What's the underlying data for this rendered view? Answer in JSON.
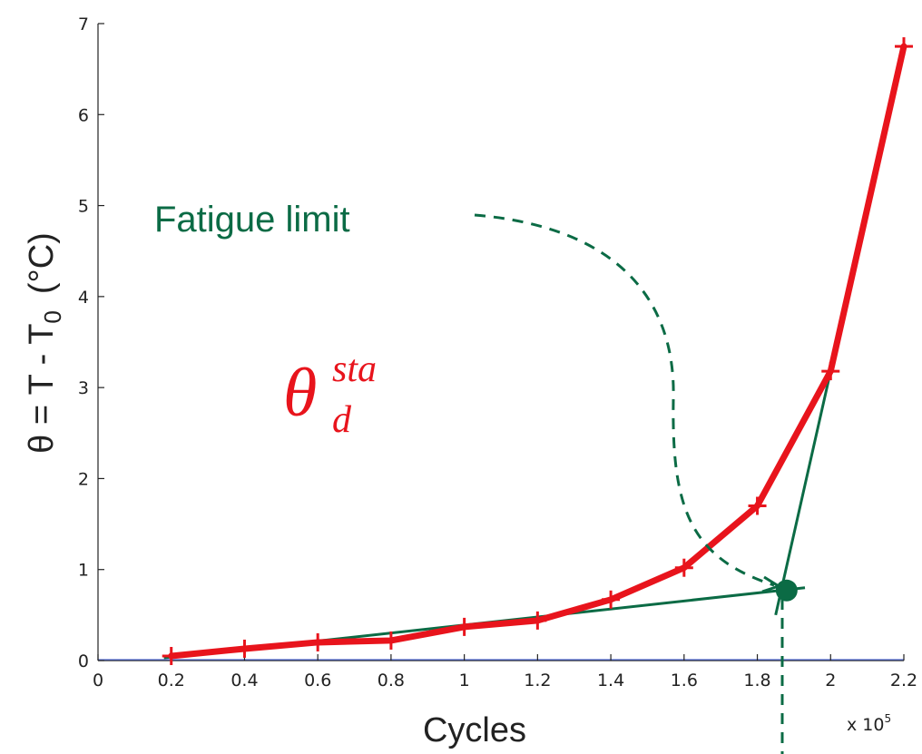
{
  "chart_data": {
    "type": "line",
    "xlabel": "Cycles",
    "ylabel_parts": {
      "pre": "θ = T - T",
      "sub": "0",
      "unit": "(°C)"
    },
    "x_multiplier": {
      "text": "x 10",
      "sup": "5"
    },
    "xlim": [
      0,
      2.2
    ],
    "ylim": [
      0,
      7
    ],
    "xticks": [
      "0",
      "0.2",
      "0.4",
      "0.6",
      "0.8",
      "1",
      "1.2",
      "1.4",
      "1.6",
      "1.8",
      "2",
      "2.2"
    ],
    "yticks": [
      "0",
      "1",
      "2",
      "3",
      "4",
      "5",
      "6",
      "7"
    ],
    "series": [
      {
        "color": "#e8141c",
        "x": [
          0.2,
          0.4,
          0.6,
          0.8,
          1.0,
          1.2,
          1.4,
          1.6,
          1.8,
          2.0,
          2.2
        ],
        "y": [
          0.05,
          0.13,
          0.2,
          0.22,
          0.37,
          0.44,
          0.67,
          1.02,
          1.7,
          3.18,
          6.75
        ]
      }
    ],
    "fit_lines": [
      {
        "color": "#0b6b45",
        "x": [
          0.18,
          1.93
        ],
        "y": [
          0.03,
          0.8
        ]
      },
      {
        "color": "#0b6b45",
        "x": [
          1.85,
          2.2
        ],
        "y": [
          0.5,
          6.75
        ]
      }
    ],
    "intersection": {
      "x": 1.88,
      "y": 0.77,
      "color": "#0b6b45"
    },
    "annotations": {
      "fatigue_label": "Fatigue limit",
      "theta_base": "θ",
      "theta_sup": "sta",
      "theta_sub": "d"
    },
    "grid": false
  },
  "colors": {
    "main": "#e8141c",
    "fit": "#0b6b45",
    "axis": "#222222"
  }
}
